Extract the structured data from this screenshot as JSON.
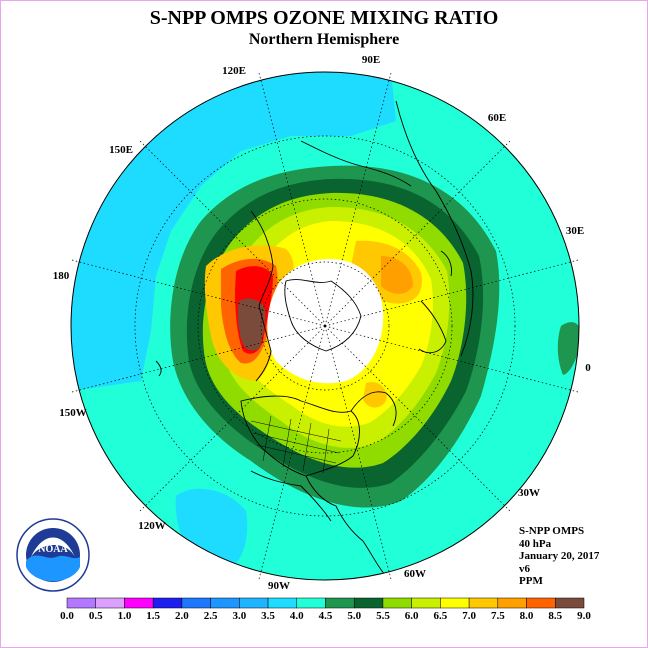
{
  "header": {
    "title": "S-NPP OMPS OZONE MIXING RATIO",
    "subtitle": "Northern Hemisphere"
  },
  "longitude_labels": [
    {
      "id": "lon-90e",
      "text": "90E"
    },
    {
      "id": "lon-120e",
      "text": "120E"
    },
    {
      "id": "lon-60e",
      "text": "60E"
    },
    {
      "id": "lon-150e",
      "text": "150E"
    },
    {
      "id": "lon-30e",
      "text": "30E"
    },
    {
      "id": "lon-180",
      "text": "180"
    },
    {
      "id": "lon-0",
      "text": "0"
    },
    {
      "id": "lon-150w",
      "text": "150W"
    },
    {
      "id": "lon-30w",
      "text": "30W"
    },
    {
      "id": "lon-120w",
      "text": "120W"
    },
    {
      "id": "lon-60w",
      "text": "60W"
    },
    {
      "id": "lon-90w",
      "text": "90W"
    }
  ],
  "info": {
    "instrument": "S-NPP OMPS",
    "pressure": "40 hPa",
    "date": "January 20, 2017",
    "version": "v6",
    "units": "PPM"
  },
  "logo": {
    "text": "NOAA",
    "ring_text": "NATIONAL OCEANIC AND ATMOSPHERIC ADMINISTRATION · U.S. DEPARTMENT OF COMMERCE"
  },
  "colorbar": {
    "ticks": [
      "0.0",
      "0.5",
      "1.0",
      "1.5",
      "2.0",
      "2.5",
      "3.0",
      "3.5",
      "4.0",
      "4.5",
      "5.0",
      "5.5",
      "6.0",
      "6.5",
      "7.0",
      "7.5",
      "8.0",
      "8.5",
      "9.0"
    ],
    "colors": [
      "#b278ff",
      "#dca0ff",
      "#ff00ff",
      "#1e1ef0",
      "#1e78ff",
      "#1e96ff",
      "#1eb4ff",
      "#1edcff",
      "#20ffd8",
      "#1e9650",
      "#0a6430",
      "#90dc00",
      "#c8f000",
      "#ffff00",
      "#ffc800",
      "#ffa000",
      "#ff6400",
      "#ff0000",
      "#7a4a3a"
    ]
  }
}
